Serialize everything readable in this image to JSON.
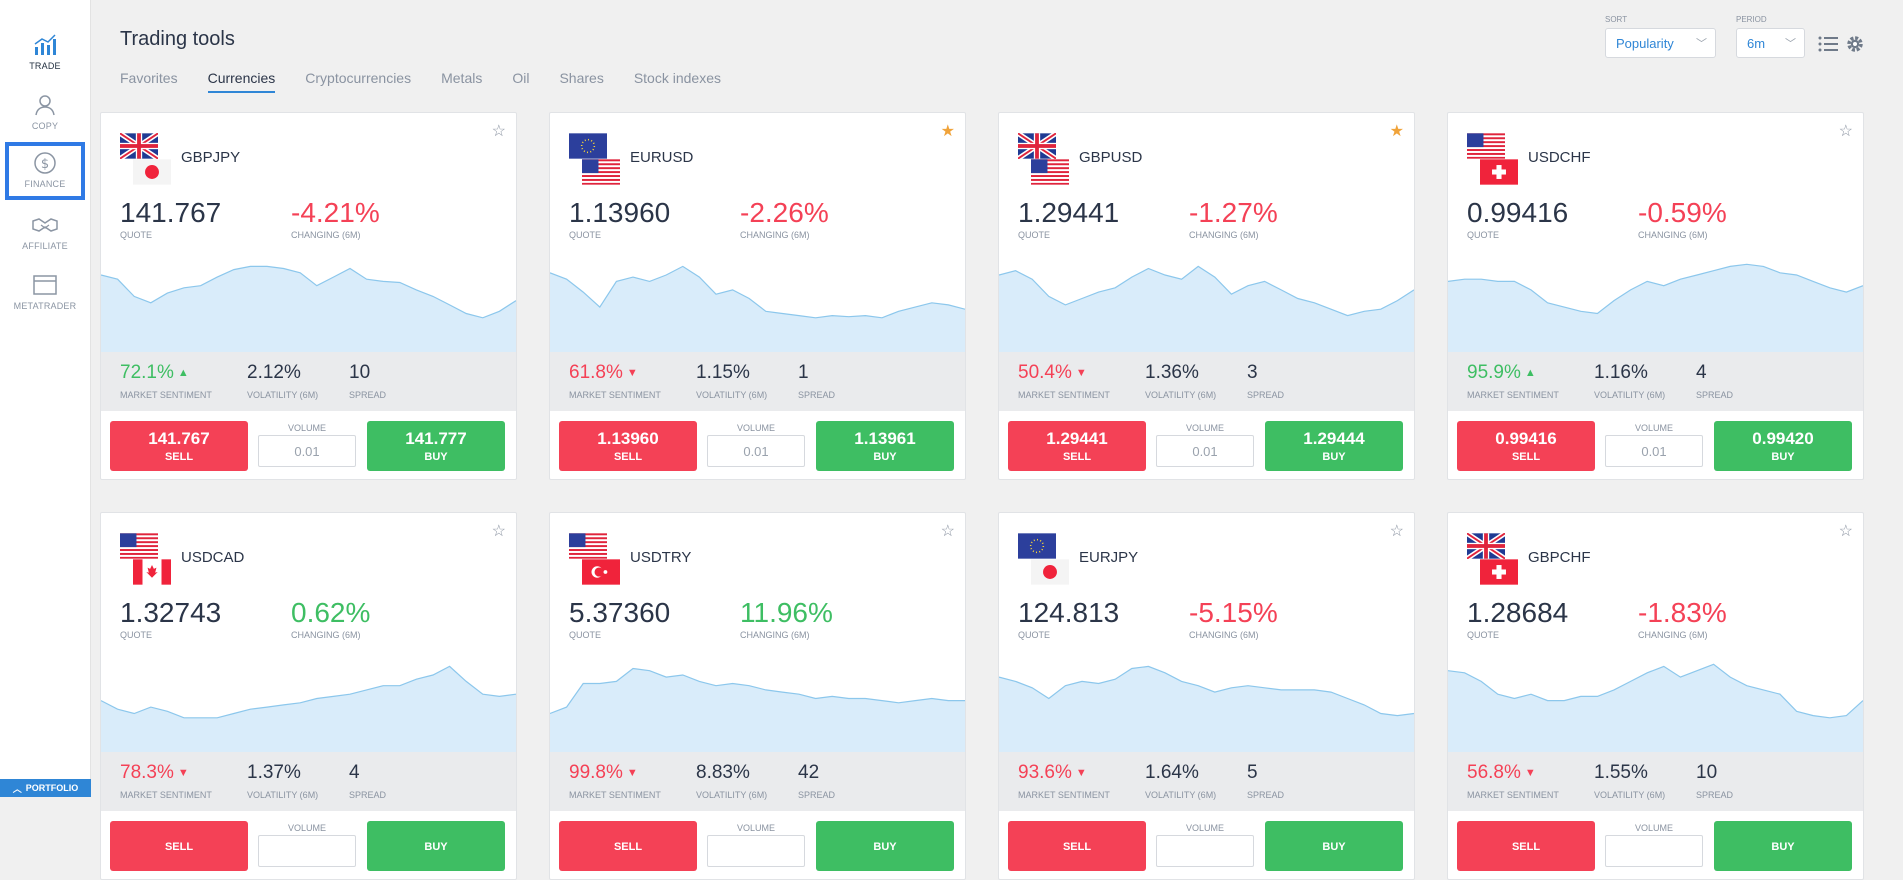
{
  "sidebar": {
    "items": [
      {
        "label": "TRADE",
        "icon": "chart-icon"
      },
      {
        "label": "COPY",
        "icon": "person-icon"
      },
      {
        "label": "FINANCE",
        "icon": "dollar-icon"
      },
      {
        "label": "AFFILIATE",
        "icon": "handshake-icon"
      },
      {
        "label": "METATRADER",
        "icon": "window-icon"
      }
    ],
    "portfolio_label": "PORTFOLIO"
  },
  "header": {
    "title": "Trading tools",
    "sort_label": "SORT",
    "sort_value": "Popularity",
    "period_label": "PERIOD",
    "period_value": "6m"
  },
  "tabs": [
    "Favorites",
    "Currencies",
    "Cryptocurrencies",
    "Metals",
    "Oil",
    "Shares",
    "Stock indexes"
  ],
  "active_tab": "Currencies",
  "labels": {
    "quote": "QUOTE",
    "changing": "CHANGING (6M)",
    "sentiment": "MARKET SENTIMENT",
    "volatility": "VOLATILITY (6M)",
    "spread": "SPREAD",
    "volume": "VOLUME",
    "sell": "SELL",
    "buy": "BUY"
  },
  "colors": {
    "accent": "#2f86d6",
    "sell": "#f44156",
    "buy": "#3ebe63",
    "favorite": "#f0a33a",
    "chart_fill": "#d9ecfa",
    "chart_line": "#8cc7ec"
  },
  "cards": [
    {
      "pair": "GBPJPY",
      "flags": [
        "GB",
        "JP"
      ],
      "favorite": false,
      "quote": "141.767",
      "change": "-4.21%",
      "change_dir": "down",
      "sentiment": "72.1%",
      "sentiment_dir": "up",
      "volatility": "2.12%",
      "spread": "10",
      "sell": "141.767",
      "buy": "141.777",
      "volume": "0.01",
      "series": [
        72,
        68,
        52,
        46,
        55,
        60,
        62,
        70,
        77,
        80,
        80,
        78,
        74,
        62,
        70,
        78,
        68,
        66,
        65,
        58,
        52,
        44,
        36,
        32,
        38,
        48
      ]
    },
    {
      "pair": "EURUSD",
      "flags": [
        "EU",
        "US"
      ],
      "favorite": true,
      "quote": "1.13960",
      "change": "-2.26%",
      "change_dir": "down",
      "sentiment": "61.8%",
      "sentiment_dir": "down",
      "volatility": "1.15%",
      "spread": "1",
      "sell": "1.13960",
      "buy": "1.13961",
      "volume": "0.01",
      "series": [
        74,
        68,
        56,
        42,
        66,
        70,
        66,
        72,
        80,
        70,
        54,
        58,
        50,
        38,
        36,
        34,
        32,
        34,
        33,
        34,
        32,
        38,
        42,
        46,
        44,
        40
      ]
    },
    {
      "pair": "GBPUSD",
      "flags": [
        "GB",
        "US"
      ],
      "favorite": true,
      "quote": "1.29441",
      "change": "-1.27%",
      "change_dir": "down",
      "sentiment": "50.4%",
      "sentiment_dir": "down",
      "volatility": "1.36%",
      "spread": "3",
      "sell": "1.29441",
      "buy": "1.29444",
      "volume": "0.01",
      "series": [
        72,
        76,
        68,
        52,
        44,
        50,
        56,
        60,
        70,
        78,
        72,
        68,
        80,
        70,
        54,
        62,
        66,
        58,
        50,
        46,
        40,
        34,
        38,
        40,
        48,
        58
      ]
    },
    {
      "pair": "USDCHF",
      "flags": [
        "US",
        "CH"
      ],
      "favorite": false,
      "quote": "0.99416",
      "change": "-0.59%",
      "change_dir": "down",
      "sentiment": "95.9%",
      "sentiment_dir": "up",
      "volatility": "1.16%",
      "spread": "4",
      "sell": "0.99416",
      "buy": "0.99420",
      "volume": "0.01",
      "series": [
        66,
        68,
        68,
        66,
        66,
        58,
        46,
        42,
        38,
        36,
        48,
        58,
        66,
        62,
        68,
        72,
        76,
        80,
        82,
        80,
        74,
        72,
        66,
        60,
        56,
        62
      ]
    },
    {
      "pair": "USDCAD",
      "flags": [
        "US",
        "CA"
      ],
      "favorite": false,
      "quote": "1.32743",
      "change": "0.62%",
      "change_dir": "up",
      "sentiment": "78.3%",
      "sentiment_dir": "down",
      "volatility": "1.37%",
      "spread": "4",
      "sell": "",
      "buy": "",
      "volume": "",
      "series": [
        48,
        40,
        36,
        42,
        38,
        32,
        32,
        32,
        36,
        40,
        42,
        44,
        46,
        50,
        52,
        54,
        58,
        62,
        62,
        68,
        72,
        80,
        66,
        54,
        52,
        54
      ]
    },
    {
      "pair": "USDTRY",
      "flags": [
        "US",
        "TR"
      ],
      "favorite": false,
      "quote": "5.37360",
      "change": "11.96%",
      "change_dir": "up",
      "sentiment": "99.8%",
      "sentiment_dir": "down",
      "volatility": "8.83%",
      "spread": "42",
      "sell": "",
      "buy": "",
      "volume": "",
      "series": [
        36,
        42,
        64,
        64,
        66,
        78,
        76,
        70,
        72,
        66,
        62,
        64,
        62,
        58,
        56,
        54,
        50,
        52,
        50,
        50,
        48,
        46,
        48,
        50,
        48,
        48
      ]
    },
    {
      "pair": "EURJPY",
      "flags": [
        "EU",
        "JP"
      ],
      "favorite": false,
      "quote": "124.813",
      "change": "-5.15%",
      "change_dir": "down",
      "sentiment": "93.6%",
      "sentiment_dir": "down",
      "volatility": "1.64%",
      "spread": "5",
      "sell": "",
      "buy": "",
      "volume": "",
      "series": [
        70,
        66,
        60,
        50,
        62,
        66,
        64,
        68,
        78,
        80,
        74,
        66,
        62,
        56,
        60,
        62,
        60,
        58,
        58,
        58,
        56,
        50,
        44,
        36,
        34,
        36
      ]
    },
    {
      "pair": "GBPCHF",
      "flags": [
        "GB",
        "CH"
      ],
      "favorite": false,
      "quote": "1.28684",
      "change": "-1.83%",
      "change_dir": "down",
      "sentiment": "56.8%",
      "sentiment_dir": "down",
      "volatility": "1.55%",
      "spread": "10",
      "sell": "",
      "buy": "",
      "volume": "",
      "series": [
        76,
        74,
        66,
        54,
        50,
        54,
        48,
        48,
        52,
        52,
        58,
        66,
        74,
        80,
        70,
        76,
        82,
        70,
        62,
        58,
        54,
        38,
        34,
        32,
        34,
        48
      ]
    }
  ]
}
